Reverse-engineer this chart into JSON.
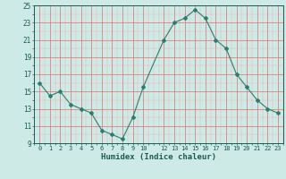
{
  "x": [
    0,
    1,
    2,
    3,
    4,
    5,
    6,
    7,
    8,
    9,
    10,
    12,
    13,
    14,
    15,
    16,
    17,
    18,
    19,
    20,
    21,
    22,
    23
  ],
  "y": [
    16.0,
    14.5,
    15.0,
    13.5,
    13.0,
    12.5,
    10.5,
    10.0,
    9.5,
    12.0,
    15.5,
    21.0,
    23.0,
    23.5,
    24.5,
    23.5,
    21.0,
    20.0,
    17.0,
    15.5,
    14.0,
    13.0,
    12.5
  ],
  "xlabel": "Humidex (Indice chaleur)",
  "ylim": [
    9,
    25
  ],
  "yticks": [
    9,
    11,
    13,
    15,
    17,
    19,
    21,
    23,
    25
  ],
  "xticks": [
    0,
    1,
    2,
    3,
    4,
    5,
    6,
    7,
    8,
    9,
    10,
    12,
    13,
    14,
    15,
    16,
    17,
    18,
    19,
    20,
    21,
    22,
    23
  ],
  "xtick_labels": [
    "0",
    "1",
    "2",
    "3",
    "4",
    "5",
    "6",
    "7",
    "8",
    "9",
    "10",
    "12",
    "13",
    "14",
    "15",
    "16",
    "17",
    "18",
    "19",
    "20",
    "21",
    "22",
    "23"
  ],
  "line_color": "#2d7d6f",
  "marker": "D",
  "marker_size": 2,
  "bg_color": "#ceeae6",
  "grid_major_color": "#e08080",
  "grid_minor_color": "#e8b0b0"
}
